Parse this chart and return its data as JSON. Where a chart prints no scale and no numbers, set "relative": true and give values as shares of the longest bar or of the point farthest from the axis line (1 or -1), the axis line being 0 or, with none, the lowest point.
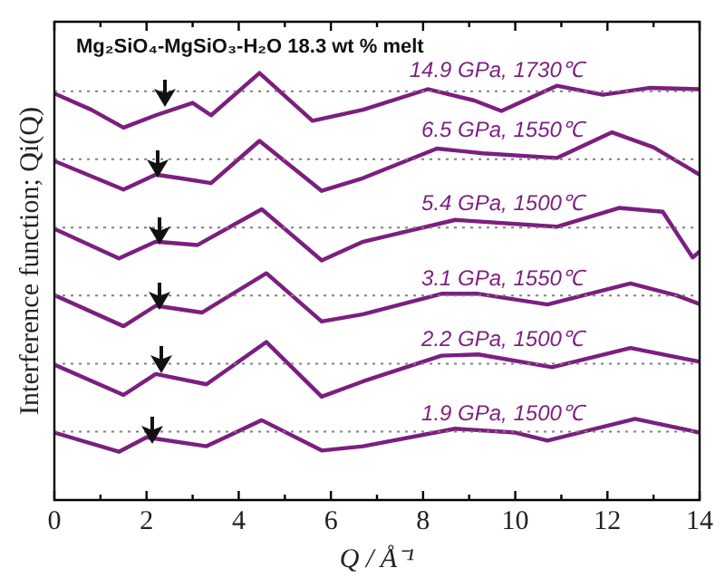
{
  "chart_data": {
    "type": "line",
    "title": "Mg₂SiO₄-MgSiO₃-H₂O 18.3 wt % melt",
    "xlabel": "Q / Å⁻¹",
    "ylabel": "Interference function; Qi(Q)",
    "relative": true,
    "xlim": [
      0,
      14
    ],
    "xticks": [
      0,
      {
        "value": 1,
        "label": null
      },
      2,
      {
        "value": 3,
        "label": null
      },
      4,
      {
        "value": 5,
        "label": null
      },
      6,
      {
        "value": 7,
        "label": null
      },
      8,
      {
        "value": 9,
        "label": null
      },
      10,
      {
        "value": 11,
        "label": null
      },
      12,
      {
        "value": 13,
        "label": null
      },
      14
    ],
    "grid": false,
    "legend": false,
    "marker": "none",
    "line_style": "solid",
    "series": [
      {
        "name": "14.9 GPa, 1730℃",
        "color": "#7b1f7e",
        "x": [
          0,
          0.8,
          1.5,
          2.2,
          3.0,
          3.4,
          4.45,
          5.6,
          6.7,
          8.1,
          9.1,
          9.7,
          10.9,
          11.9,
          12.9,
          14
        ],
        "values": [
          0.952,
          0.914,
          0.872,
          0.901,
          0.93,
          0.901,
          1.0,
          0.888,
          0.914,
          0.962,
          0.936,
          0.911,
          0.97,
          0.949,
          0.965,
          0.962
        ]
      },
      {
        "name": "6.5 GPa, 1550℃",
        "color": "#7b1f7e",
        "x": [
          0,
          1.5,
          2.2,
          2.7,
          3.4,
          4.45,
          5.8,
          6.7,
          8.3,
          9.3,
          10.9,
          12.1,
          13.0,
          14
        ],
        "values": [
          0.794,
          0.727,
          0.762,
          0.754,
          0.742,
          0.841,
          0.724,
          0.754,
          0.823,
          0.812,
          0.801,
          0.861,
          0.826,
          0.762
        ]
      },
      {
        "name": "5.4 GPa, 1500℃",
        "color": "#7b1f7e",
        "x": [
          0,
          1.4,
          2.2,
          3.1,
          4.5,
          5.8,
          6.7,
          8.7,
          10.9,
          12.25,
          13.2,
          13.85,
          14
        ],
        "values": [
          0.635,
          0.566,
          0.605,
          0.597,
          0.681,
          0.561,
          0.605,
          0.656,
          0.64,
          0.684,
          0.675,
          0.568,
          0.582
        ]
      },
      {
        "name": "3.1 GPa, 1550℃",
        "color": "#7b1f7e",
        "x": [
          0,
          1.5,
          2.2,
          3.2,
          4.6,
          5.8,
          6.7,
          8.4,
          9.2,
          10.7,
          12.5,
          13.5,
          14
        ],
        "values": [
          0.48,
          0.407,
          0.455,
          0.439,
          0.531,
          0.418,
          0.435,
          0.483,
          0.483,
          0.458,
          0.507,
          0.479,
          0.459
        ]
      },
      {
        "name": "2.2 GPa, 1500℃",
        "color": "#7b1f7e",
        "x": [
          0,
          1.5,
          2.2,
          3.3,
          4.6,
          5.8,
          6.7,
          8.4,
          9.2,
          10.8,
          12.5,
          14
        ],
        "values": [
          0.317,
          0.246,
          0.295,
          0.271,
          0.37,
          0.242,
          0.278,
          0.338,
          0.341,
          0.311,
          0.356,
          0.324
        ]
      },
      {
        "name": "1.9 GPa, 1500℃",
        "color": "#7b1f7e",
        "x": [
          0,
          1.4,
          2.0,
          3.3,
          4.5,
          5.8,
          6.7,
          8.7,
          10.0,
          10.7,
          12.6,
          14
        ],
        "values": [
          0.158,
          0.113,
          0.147,
          0.126,
          0.187,
          0.116,
          0.126,
          0.167,
          0.158,
          0.139,
          0.19,
          0.158
        ]
      }
    ],
    "ref_lines": [
      {
        "axis": "y",
        "value": 0.957,
        "color": "#808080",
        "line_style": "dotted"
      },
      {
        "axis": "y",
        "value": 0.798,
        "color": "#808080",
        "line_style": "dotted"
      },
      {
        "axis": "y",
        "value": 0.638,
        "color": "#808080",
        "line_style": "dotted"
      },
      {
        "axis": "y",
        "value": 0.479,
        "color": "#808080",
        "line_style": "dotted"
      },
      {
        "axis": "y",
        "value": 0.319,
        "color": "#808080",
        "line_style": "dotted"
      },
      {
        "axis": "y",
        "value": 0.16,
        "color": "#808080",
        "line_style": "dotted"
      }
    ]
  }
}
